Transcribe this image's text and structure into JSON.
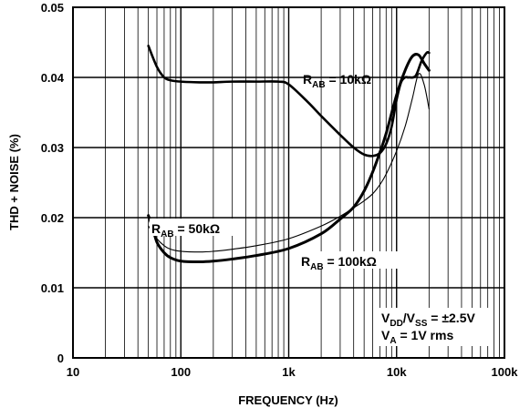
{
  "chart_data": {
    "type": "line",
    "xlabel": "FREQUENCY (Hz)",
    "ylabel": "THD + NOISE (%)",
    "x_scale": "log",
    "xlim": [
      10,
      100000
    ],
    "ylim": [
      0,
      0.05
    ],
    "grid": true,
    "x_tick_labels": [
      "10",
      "100",
      "1k",
      "10k",
      "100k"
    ],
    "y_tick_labels": [
      "0",
      "0.01",
      "0.02",
      "0.03",
      "0.04",
      "0.05"
    ],
    "series": [
      {
        "name": "RAB = 10kΩ",
        "x": [
          50,
          60,
          70,
          80,
          100,
          150,
          200,
          300,
          500,
          800,
          1000,
          1500,
          2000,
          3000,
          4000,
          5000,
          6000,
          7000,
          8000,
          9000,
          10000,
          11000,
          12000,
          13000,
          15000,
          17000,
          19000,
          20000
        ],
        "y": [
          0.0445,
          0.0415,
          0.04,
          0.0396,
          0.0394,
          0.0393,
          0.0393,
          0.0394,
          0.0394,
          0.0394,
          0.039,
          0.0365,
          0.0345,
          0.0318,
          0.03,
          0.029,
          0.0288,
          0.0292,
          0.0305,
          0.033,
          0.0368,
          0.0393,
          0.04,
          0.04,
          0.0402,
          0.0423,
          0.0435,
          0.0435
        ]
      },
      {
        "name": "RAB = 50kΩ",
        "x": [
          50,
          60,
          70,
          80,
          100,
          150,
          200,
          300,
          500,
          1000,
          2000,
          3000,
          4000,
          5000,
          6000,
          7000,
          8000,
          10000,
          12000,
          14000,
          16000,
          18000,
          20000
        ],
        "y": [
          0.0188,
          0.017,
          0.016,
          0.0155,
          0.0152,
          0.0151,
          0.0152,
          0.0155,
          0.016,
          0.017,
          0.0188,
          0.0202,
          0.0214,
          0.0224,
          0.0234,
          0.0247,
          0.0262,
          0.0295,
          0.033,
          0.037,
          0.0405,
          0.039,
          0.0355
        ]
      },
      {
        "name": "RAB = 100kΩ",
        "x": [
          50,
          55,
          60,
          70,
          80,
          100,
          150,
          200,
          300,
          500,
          1000,
          2000,
          3000,
          4000,
          5000,
          6000,
          7000,
          8000,
          10000,
          12000,
          14000,
          16000,
          18000,
          20000
        ],
        "y": [
          0.0203,
          0.0185,
          0.0165,
          0.015,
          0.0143,
          0.0138,
          0.0137,
          0.0138,
          0.0141,
          0.0146,
          0.0156,
          0.0177,
          0.0198,
          0.0215,
          0.0238,
          0.0265,
          0.0293,
          0.032,
          0.0375,
          0.041,
          0.043,
          0.0432,
          0.042,
          0.041
        ]
      }
    ],
    "annotations": {
      "lbl10k": {
        "main": "R",
        "sub": "AB",
        "rest": " = 10kΩ"
      },
      "lbl50k": {
        "main": "R",
        "sub": "AB",
        "rest": " = 50kΩ"
      },
      "lbl100k": {
        "main": "R",
        "sub": "AB",
        "rest": " = 100kΩ"
      },
      "cond1": {
        "a": "V",
        "a_sub": "DD",
        "b": "/V",
        "b_sub": "SS",
        "rest": " = ±2.5V"
      },
      "cond2": {
        "a": "V",
        "a_sub": "A",
        "rest": " = 1V rms"
      }
    }
  }
}
